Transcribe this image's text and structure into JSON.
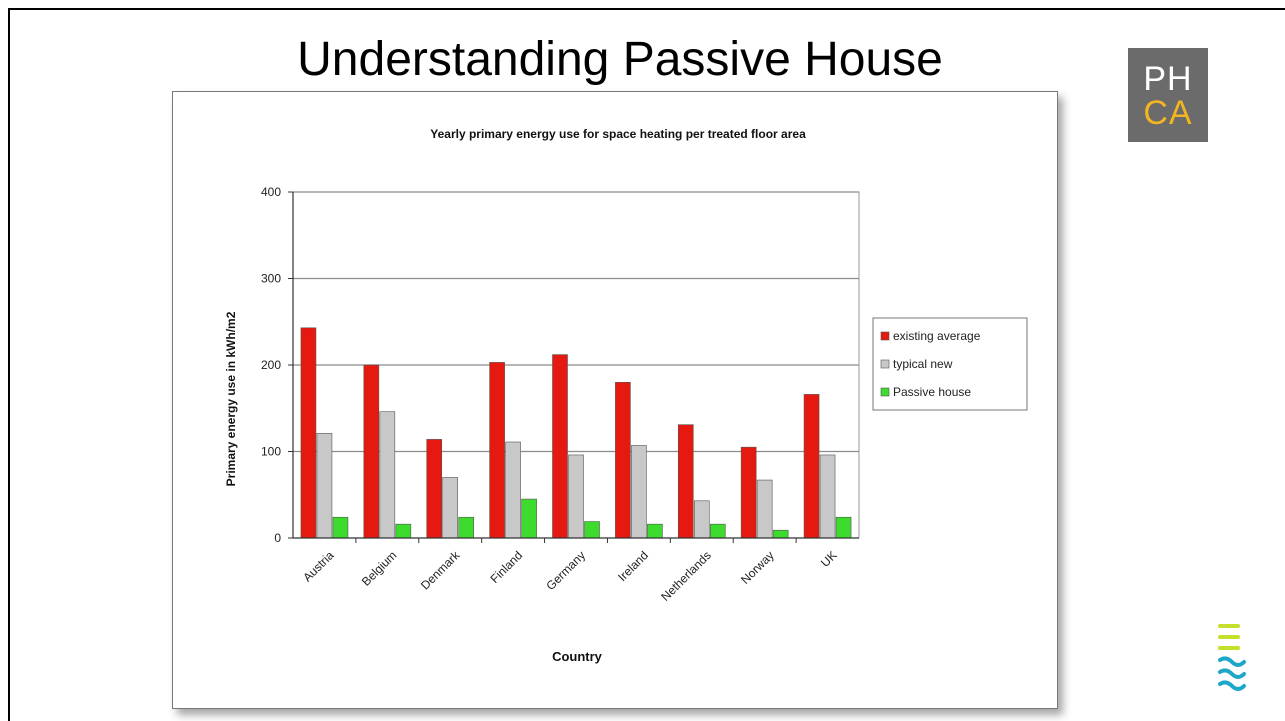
{
  "slide": {
    "title": "Understanding Passive House",
    "logo": {
      "line1": "PH",
      "line2": "CA",
      "icon": "phca-logo"
    },
    "corner_icon": "wave-lines-icon"
  },
  "colors": {
    "existing": "#e5190f",
    "typical": "#c8c8c8",
    "passive": "#3ddb2e",
    "logo_bg": "#6b6b6b",
    "logo_accent": "#f3b521",
    "wave": "#c6df2a",
    "wave2": "#1fa7c9"
  },
  "chart_data": {
    "type": "bar",
    "title": "Yearly primary energy use for space heating per treated floor area",
    "xlabel": "Country",
    "ylabel": "Primary energy use in kWh/m2",
    "ylim": [
      0,
      400
    ],
    "yticks": [
      "0",
      "100",
      "200",
      "300",
      "400"
    ],
    "grid": true,
    "legend": "right",
    "categories": [
      "Austria",
      "Belgium",
      "Denmark",
      "Finland",
      "Germany",
      "Ireland",
      "Netherlands",
      "Norway",
      "UK"
    ],
    "series": [
      {
        "name": "existing average",
        "values": [
          243,
          200,
          114,
          203,
          212,
          180,
          131,
          105,
          166
        ]
      },
      {
        "name": "typical new",
        "values": [
          121,
          146,
          70,
          111,
          96,
          107,
          43,
          67,
          96
        ]
      },
      {
        "name": "Passive house",
        "values": [
          24,
          16,
          24,
          45,
          19,
          16,
          16,
          9,
          24
        ]
      }
    ]
  }
}
